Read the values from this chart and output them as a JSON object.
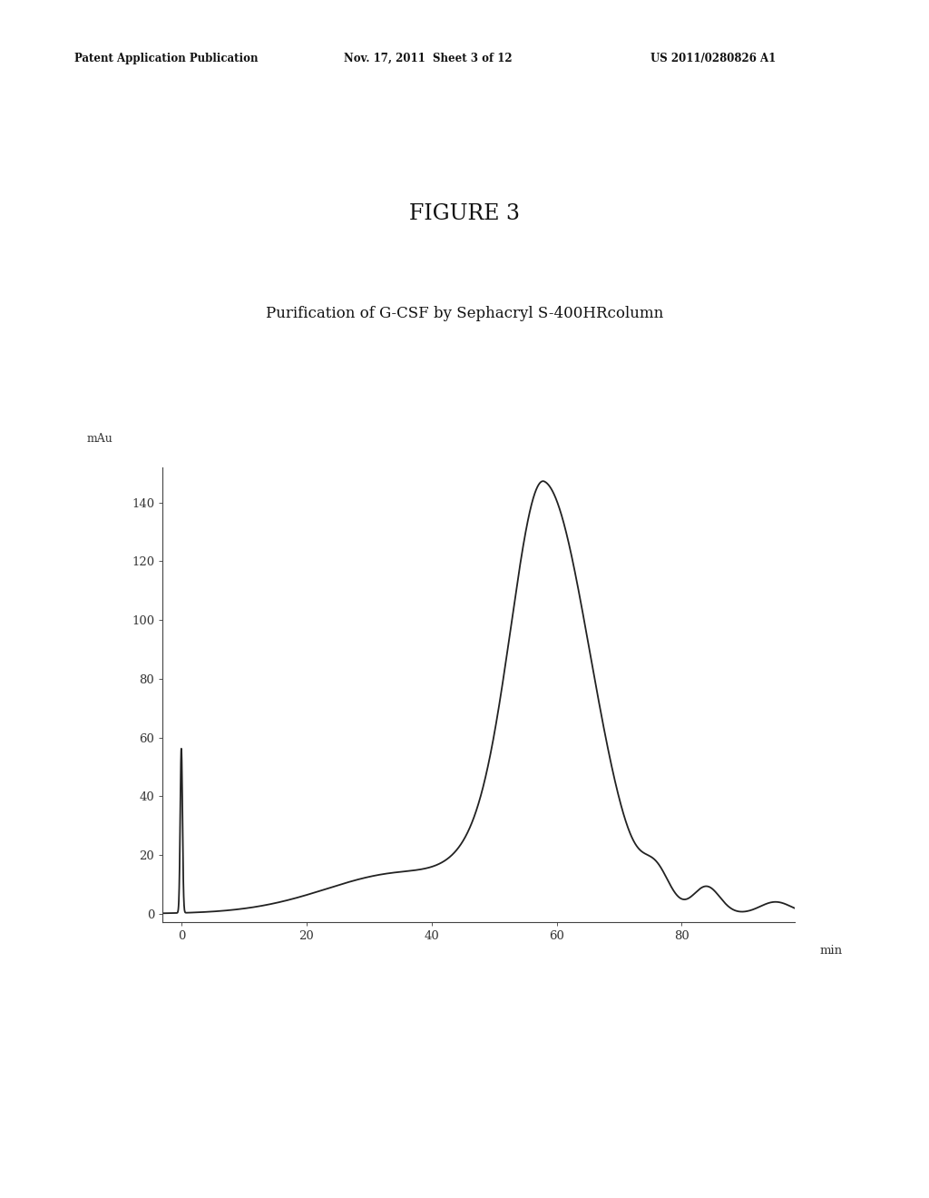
{
  "figure_title": "FIGURE 3",
  "chart_title": "Purification of G-CSF by Sephacryl S-400HRcolumn",
  "header_left": "Patent Application Publication",
  "header_middle": "Nov. 17, 2011  Sheet 3 of 12",
  "header_right": "US 2011/0280826 A1",
  "ylabel": "mAu",
  "ylabel2": "140",
  "xlabel": "min",
  "yticks": [
    0,
    20,
    40,
    60,
    80,
    100,
    120,
    140
  ],
  "xticks": [
    0,
    20,
    40,
    60,
    80
  ],
  "xmin": -3,
  "xmax": 98,
  "ymin": -3,
  "ymax": 152,
  "line_color": "#222222",
  "line_width": 1.3,
  "bg_color": "#ffffff"
}
